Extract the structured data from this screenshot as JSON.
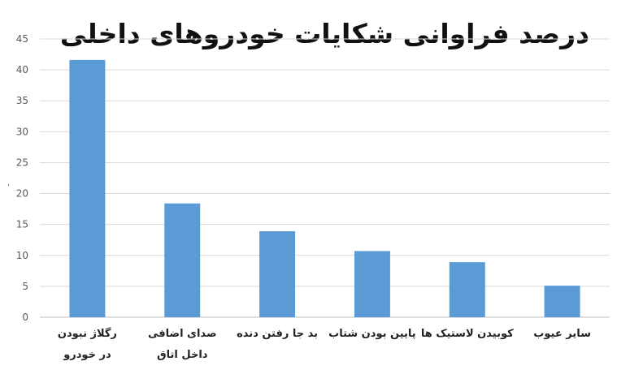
{
  "chart_data": {
    "type": "bar",
    "title": "درصد فراوانی شکایات خودروهای داخلی",
    "ylabel": "،",
    "xlabel": "",
    "ylim": [
      0,
      45
    ],
    "yticks": [
      0,
      5,
      10,
      15,
      20,
      25,
      30,
      35,
      40,
      45
    ],
    "grid": true,
    "bar_color": "#5b9bd5",
    "categories": [
      "رگلاژ نبودن\nدر خودرو",
      "صدای اضافی\nداخل اتاق",
      "بد جا رفتن دنده",
      "پایین بودن شتاب",
      "کوبیدن لاستیک ها",
      "سایر عیوب"
    ],
    "values": [
      41.6,
      18.4,
      13.9,
      10.7,
      8.9,
      5.1
    ]
  }
}
